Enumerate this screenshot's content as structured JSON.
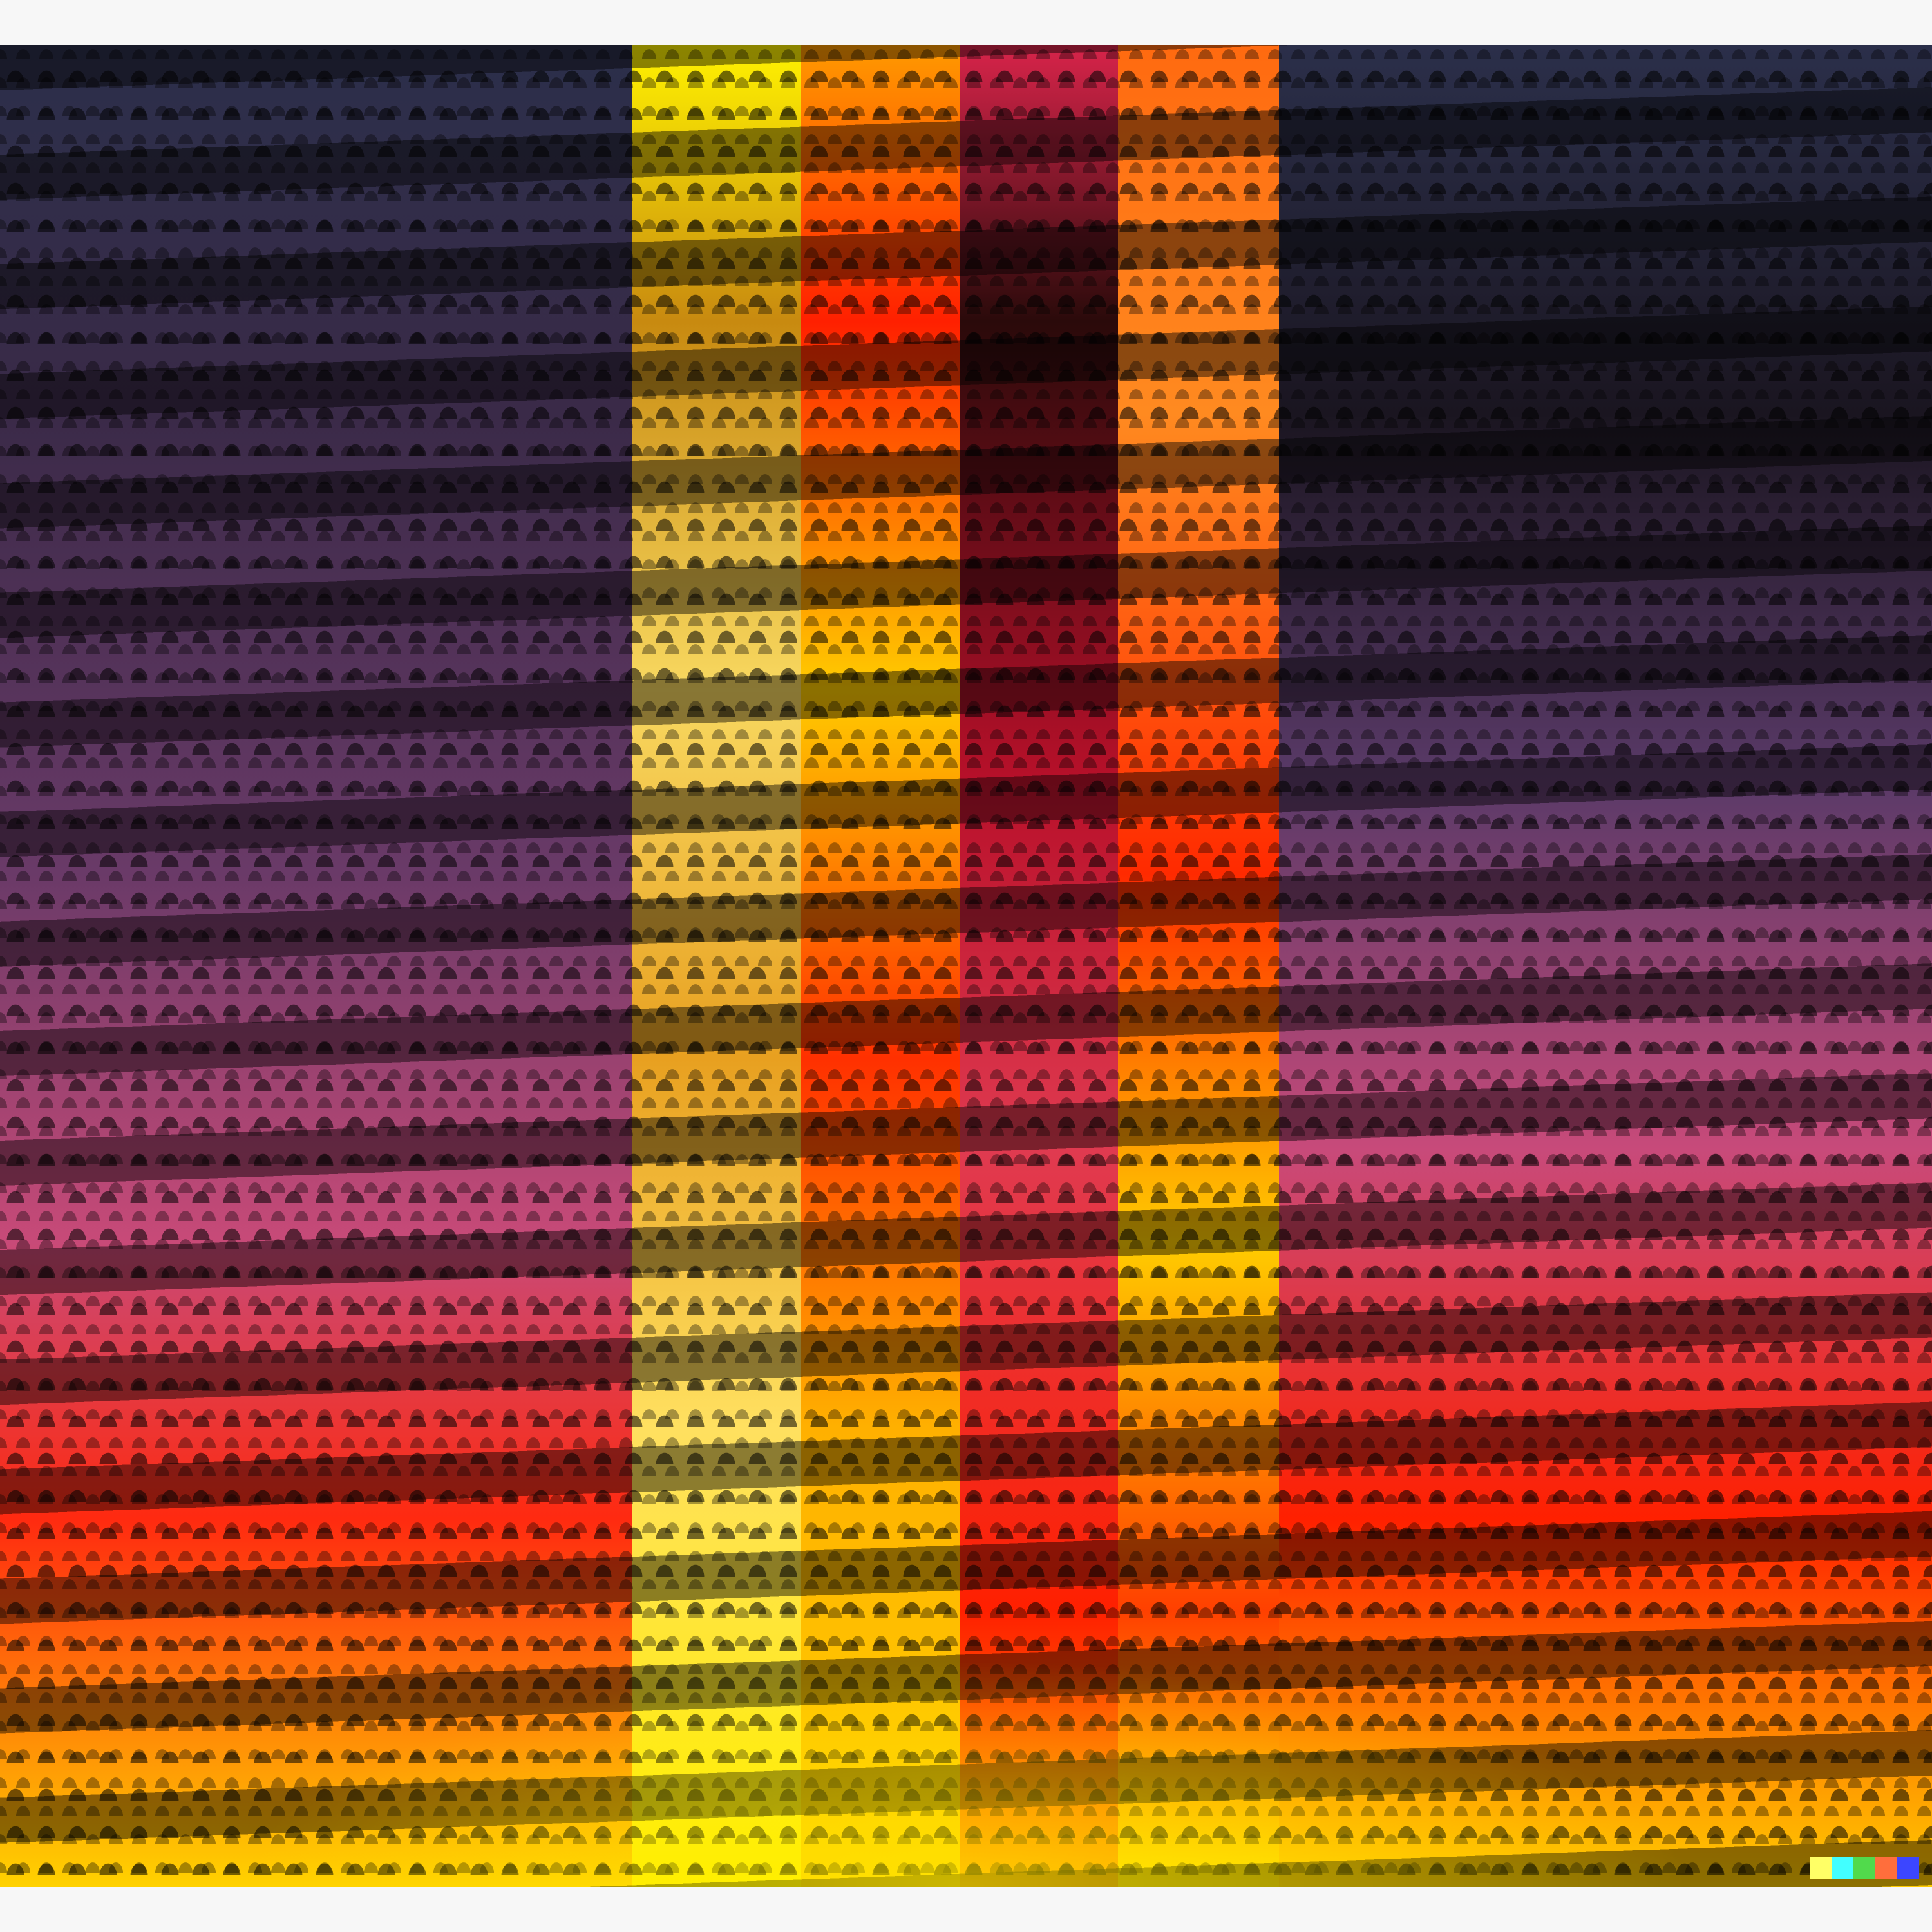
{
  "artwork": {
    "bands": [
      {
        "name": "left-dark-field",
        "top": "#2b2f4a",
        "mid": "#b04a7a",
        "bottom": "#ffd200"
      },
      {
        "name": "yellow-column",
        "top": "#fff200",
        "mid": "#e8a020",
        "bottom": "#ffee00"
      },
      {
        "name": "orange-column",
        "top": "#ff9a00",
        "mid": "#ff3000",
        "bottom": "#ffd000"
      },
      {
        "name": "crimson-column",
        "top": "#d8244a",
        "mid": "#b8102a",
        "bottom": "#ff2000"
      },
      {
        "name": "orange-red-column",
        "top": "#ff6a10",
        "mid": "#ff2a00",
        "bottom": "#ffe000"
      },
      {
        "name": "right-dark-field",
        "top": "#2b2f4a",
        "mid": "#c84a7a",
        "bottom": "#ffcc00"
      }
    ],
    "watermark_colors": [
      "#ffff66",
      "#42ffff",
      "#51da4c",
      "#ff6e3c",
      "#3c46ff"
    ]
  }
}
